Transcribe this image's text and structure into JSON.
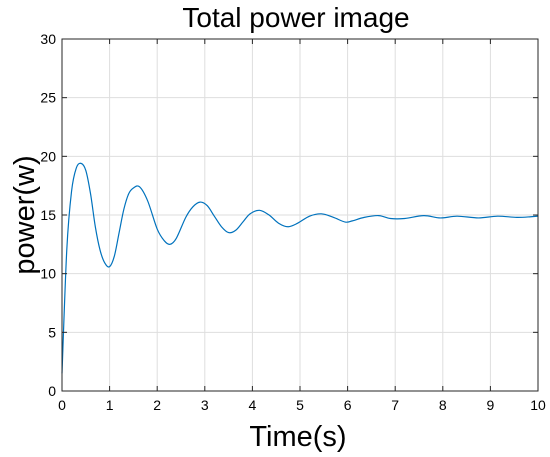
{
  "chart_data": {
    "type": "line",
    "title": "Total power image",
    "xlabel": "Time(s)",
    "ylabel": "power(w)",
    "xlim": [
      0,
      10
    ],
    "ylim": [
      0,
      30
    ],
    "xticks": [
      0,
      1,
      2,
      3,
      4,
      5,
      6,
      7,
      8,
      9,
      10
    ],
    "yticks": [
      0,
      5,
      10,
      15,
      20,
      25,
      30
    ],
    "grid": true,
    "legend": "none",
    "colors": {
      "line": "#0072BD",
      "frame": "#262626",
      "grid": "#dedede"
    },
    "series": [
      {
        "x": [
          0,
          0.1,
          0.2,
          0.3,
          0.4,
          0.5,
          0.6,
          0.7,
          0.8,
          0.9,
          1.0,
          1.1,
          1.2,
          1.3,
          1.4,
          1.5,
          1.63,
          1.8,
          2.0,
          2.15,
          2.27,
          2.4,
          2.6,
          2.75,
          2.9,
          3.05,
          3.2,
          3.35,
          3.5,
          3.65,
          3.8,
          3.95,
          4.15,
          4.35,
          4.55,
          4.75,
          4.95,
          5.2,
          5.45,
          5.7,
          5.95,
          6.1,
          6.35,
          6.65,
          6.9,
          7.2,
          7.6,
          7.95,
          8.3,
          8.75,
          9.15,
          9.55,
          9.85,
          10.0
        ],
        "y": [
          1.5,
          12.0,
          17.0,
          19.0,
          19.4,
          18.8,
          16.8,
          14.0,
          12.0,
          10.9,
          10.6,
          11.5,
          13.5,
          15.5,
          16.8,
          17.3,
          17.4,
          16.2,
          13.8,
          12.8,
          12.5,
          13.0,
          14.8,
          15.7,
          16.1,
          15.8,
          14.9,
          14.0,
          13.5,
          13.7,
          14.4,
          15.1,
          15.4,
          15.0,
          14.3,
          14.0,
          14.3,
          14.9,
          15.1,
          14.8,
          14.4,
          14.5,
          14.8,
          14.95,
          14.7,
          14.7,
          14.95,
          14.75,
          14.9,
          14.75,
          14.9,
          14.8,
          14.85,
          14.9
        ]
      }
    ]
  }
}
